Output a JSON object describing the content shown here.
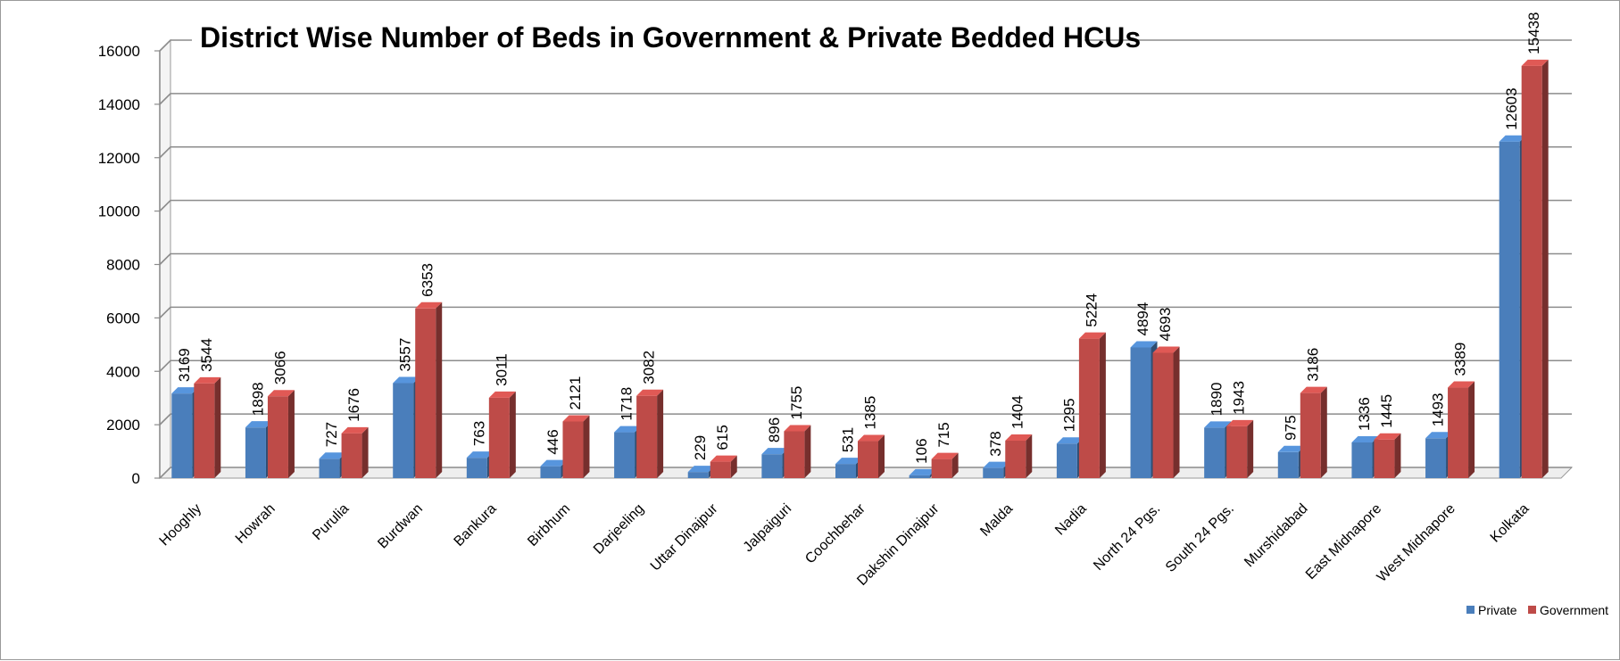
{
  "chart_data": {
    "type": "bar",
    "title": "District Wise Number of Beds in Government & Private Bedded HCUs",
    "xlabel": "",
    "ylabel": "",
    "ylim": [
      0,
      16000
    ],
    "yticks": [
      0,
      2000,
      4000,
      6000,
      8000,
      10000,
      12000,
      14000,
      16000
    ],
    "grid": true,
    "legend_position": "bottom-right",
    "categories": [
      "Hooghly",
      "Howrah",
      "Purulia",
      "Burdwan",
      "Bankura",
      "Birbhum",
      "Darjeeling",
      "Uttar Dinajpur",
      "Jalpaiguri",
      "Coochbehar",
      "Dakshin Dinajpur",
      "Malda",
      "Nadia",
      "North 24 Pgs.",
      "South 24 Pgs.",
      "Murshidabad",
      "East Midnapore",
      "West Midnapore",
      "Kolkata"
    ],
    "series": [
      {
        "name": "Private",
        "color": "#4a7ebb",
        "values": [
          3169,
          1898,
          727,
          3557,
          763,
          446,
          1718,
          229,
          896,
          531,
          106,
          378,
          1295,
          4894,
          1890,
          975,
          1336,
          1493,
          12603
        ]
      },
      {
        "name": "Government",
        "color": "#be4b48",
        "values": [
          3544,
          3066,
          1676,
          6353,
          3011,
          2121,
          3082,
          615,
          1755,
          1385,
          715,
          1404,
          5224,
          4693,
          1943,
          3186,
          1445,
          3389,
          15438
        ]
      }
    ]
  }
}
